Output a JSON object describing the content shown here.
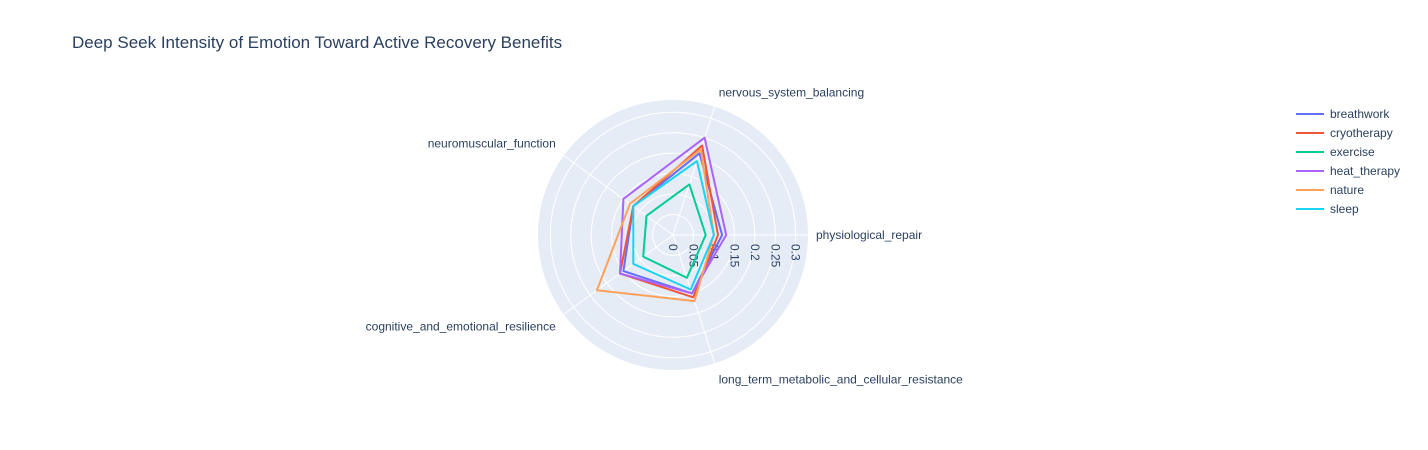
{
  "chart_data": {
    "type": "radar",
    "title": "Deep Seek Intensity of Emotion Toward Active Recovery Benefits",
    "axes": [
      "physiological_repair",
      "nervous_system_balancing",
      "neuromuscular_function",
      "cognitive_and_emotional_resilience",
      "long_term_metabolic_and_cellular_resistance"
    ],
    "radial_ticks": [
      "0",
      "0.05",
      "0.1",
      "0.15",
      "0.2",
      "0.25",
      "0.3"
    ],
    "radial_range": [
      0,
      0.33
    ],
    "grid": true,
    "legend_position": "right",
    "series": [
      {
        "name": "breathwork",
        "color": "#636efa",
        "values": [
          0.12,
          0.21,
          0.12,
          0.15,
          0.15
        ]
      },
      {
        "name": "cryotherapy",
        "color": "#ef553b",
        "values": [
          0.11,
          0.23,
          0.12,
          0.16,
          0.16
        ]
      },
      {
        "name": "exercise",
        "color": "#00cc96",
        "values": [
          0.08,
          0.13,
          0.08,
          0.09,
          0.11
        ]
      },
      {
        "name": "heat_therapy",
        "color": "#ab63fa",
        "values": [
          0.13,
          0.25,
          0.15,
          0.16,
          0.15
        ]
      },
      {
        "name": "nature",
        "color": "#ffa15a",
        "values": [
          0.1,
          0.22,
          0.13,
          0.23,
          0.17
        ]
      },
      {
        "name": "sleep",
        "color": "#19d3f3",
        "values": [
          0.1,
          0.19,
          0.12,
          0.12,
          0.14
        ]
      }
    ]
  }
}
